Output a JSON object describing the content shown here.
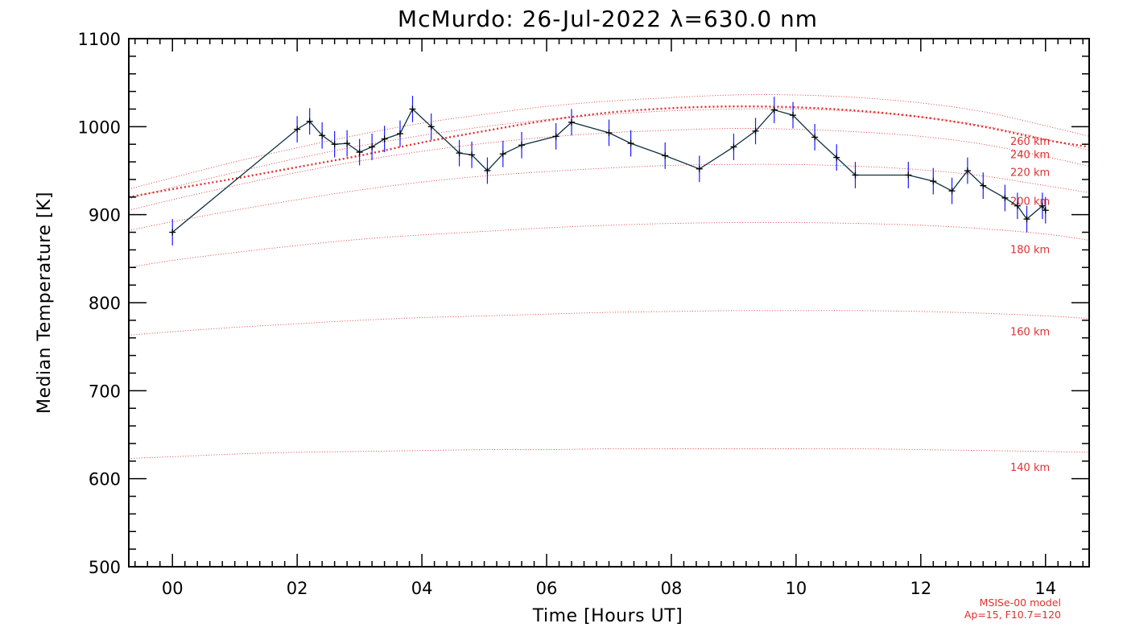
{
  "chart_data": {
    "type": "line",
    "title": "McMurdo: 26-Jul-2022 λ=630.0 nm",
    "xlabel": "Time [Hours UT]",
    "ylabel": "Median Temperature [K]",
    "xlim": [
      -0.7,
      14.7
    ],
    "ylim": [
      500,
      1100
    ],
    "x_ticks": [
      0,
      2,
      4,
      6,
      8,
      10,
      12,
      14
    ],
    "x_tick_labels": [
      "00",
      "02",
      "04",
      "06",
      "08",
      "10",
      "12",
      "14"
    ],
    "y_ticks": [
      500,
      600,
      700,
      800,
      900,
      1000,
      1100
    ],
    "y_tick_labels": [
      "500",
      "600",
      "700",
      "800",
      "900",
      "1000",
      "1100"
    ],
    "series": [
      {
        "color": "#0b3040",
        "error_color": "#1a1aff",
        "x": [
          0.0,
          2.0,
          2.2,
          2.4,
          2.6,
          2.8,
          3.0,
          3.2,
          3.4,
          3.65,
          3.85,
          4.15,
          4.6,
          4.8,
          5.05,
          5.3,
          5.6,
          6.15,
          6.4,
          7.0,
          7.35,
          7.9,
          8.45,
          9.0,
          9.35,
          9.65,
          9.95,
          10.3,
          10.65,
          10.95,
          11.8,
          12.2,
          12.5,
          12.75,
          13.0,
          13.35,
          13.55,
          13.7,
          13.95,
          14.0
        ],
        "y": [
          880,
          997,
          1006,
          990,
          980,
          981,
          971,
          977,
          986,
          992,
          1020,
          1000,
          970,
          968,
          950,
          969,
          979,
          989,
          1005,
          993,
          981,
          967,
          952,
          977,
          995,
          1019,
          1013,
          988,
          965,
          945,
          945,
          938,
          927,
          950,
          933,
          919,
          910,
          895,
          910,
          905
        ],
        "yerr": 15
      }
    ],
    "model": {
      "name": "MSISe-00 model",
      "params": "Ap=15, F10.7=120",
      "color": "#e03030",
      "x": [
        -0.7,
        0,
        1,
        2,
        3,
        4,
        5,
        6,
        7,
        8,
        9,
        10,
        11,
        12,
        13,
        14,
        14.7
      ],
      "curves": [
        {
          "label": "140 km",
          "y": [
            623,
            625,
            628,
            630,
            631,
            632,
            633,
            633,
            634,
            634,
            634,
            634,
            634,
            633,
            632,
            631,
            630
          ]
        },
        {
          "label": "160 km",
          "y": [
            763,
            767,
            772,
            776,
            780,
            783,
            785,
            787,
            789,
            790,
            791,
            791,
            791,
            790,
            788,
            785,
            782
          ]
        },
        {
          "label": "180 km",
          "y": [
            840,
            848,
            857,
            865,
            872,
            877,
            881,
            885,
            888,
            890,
            891,
            891,
            890,
            888,
            884,
            878,
            871
          ]
        },
        {
          "label": "200 km",
          "y": [
            882,
            892,
            905,
            917,
            928,
            937,
            944,
            949,
            953,
            956,
            957,
            957,
            955,
            951,
            944,
            933,
            925
          ]
        },
        {
          "label": "220 km",
          "y": [
            905,
            917,
            933,
            948,
            961,
            972,
            981,
            988,
            993,
            996,
            998,
            997,
            994,
            989,
            980,
            966,
            955
          ]
        },
        {
          "label": "240 km",
          "y": [
            918,
            931,
            948,
            964,
            978,
            990,
            1000,
            1008,
            1014,
            1018,
            1020,
            1020,
            1017,
            1011,
            1001,
            986,
            973
          ]
        },
        {
          "label": "260 km",
          "y": [
            929,
            942,
            960,
            976,
            991,
            1004,
            1014,
            1023,
            1029,
            1033,
            1036,
            1036,
            1033,
            1027,
            1017,
            1001,
            989
          ]
        }
      ],
      "highlight": {
        "y": [
          920,
          929,
          941,
          954,
          967,
          982,
          995,
          1007,
          1016,
          1021,
          1023,
          1022,
          1018,
          1011,
          1000,
          985,
          977
        ]
      }
    }
  }
}
